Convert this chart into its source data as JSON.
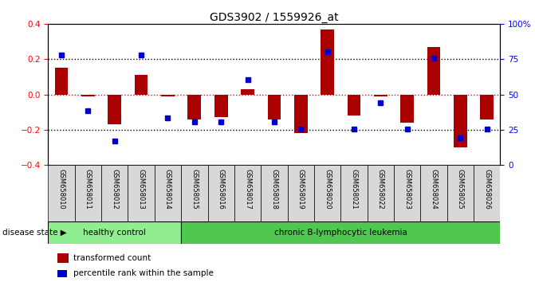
{
  "title": "GDS3902 / 1559926_at",
  "samples": [
    "GSM658010",
    "GSM658011",
    "GSM658012",
    "GSM658013",
    "GSM658014",
    "GSM658015",
    "GSM658016",
    "GSM658017",
    "GSM658018",
    "GSM658019",
    "GSM658020",
    "GSM658021",
    "GSM658022",
    "GSM658023",
    "GSM658024",
    "GSM658025",
    "GSM658026"
  ],
  "red_values": [
    0.15,
    -0.01,
    -0.17,
    0.11,
    -0.01,
    -0.14,
    -0.13,
    0.03,
    -0.14,
    -0.22,
    0.37,
    -0.12,
    -0.01,
    -0.16,
    0.27,
    -0.3,
    -0.14
  ],
  "blue_values": [
    0.225,
    -0.09,
    -0.265,
    0.225,
    -0.135,
    -0.155,
    -0.155,
    0.085,
    -0.155,
    -0.195,
    0.24,
    -0.195,
    -0.045,
    -0.195,
    0.205,
    -0.245,
    -0.195
  ],
  "healthy_count": 5,
  "ylim_left": [
    -0.4,
    0.4
  ],
  "ylim_right": [
    0,
    100
  ],
  "yticks_left": [
    -0.4,
    -0.2,
    0.0,
    0.2,
    0.4
  ],
  "yticks_right": [
    0,
    25,
    50,
    75,
    100
  ],
  "hlines": [
    0.2,
    0.0,
    -0.2
  ],
  "bar_color": "#AA0000",
  "dot_color": "#0000CC",
  "healthy_color": "#90EE90",
  "leukemia_color": "#50C850",
  "group_label_healthy": "healthy control",
  "group_label_leukemia": "chronic B-lymphocytic leukemia",
  "disease_state_label": "disease state",
  "legend_red": "transformed count",
  "legend_blue": "percentile rank within the sample",
  "background_color": "#ffffff",
  "plot_bg": "#ffffff"
}
